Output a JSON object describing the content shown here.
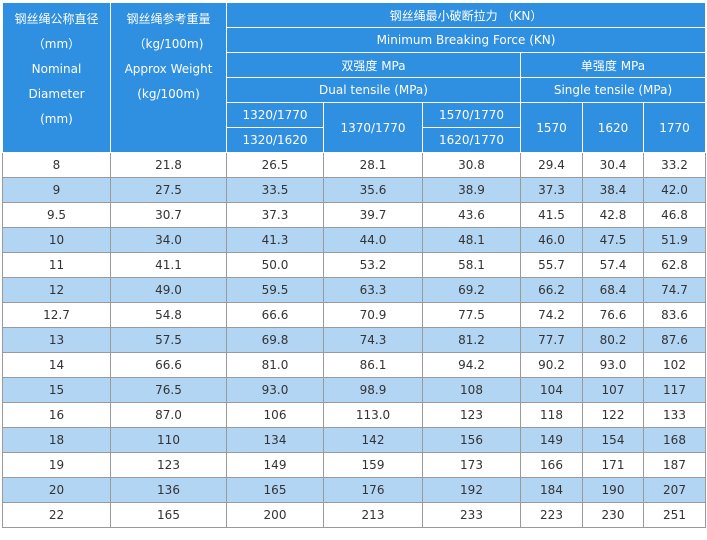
{
  "header": {
    "col_diameter": [
      "钢丝绳公称直径",
      "（mm）",
      "Nominal Diameter",
      "(mm)"
    ],
    "col_weight": [
      "钢丝绳参考重量",
      "（kg/100m)",
      "Approx Weight",
      "(kg/100m)"
    ],
    "force_zh": "钢丝绳最小破断拉力 （KN）",
    "force_en": "Minimum Breaking Force (KN)",
    "dual_zh": "双强度 MPa",
    "dual_en": "Dual tensile (MPa)",
    "single_zh": "单强度 MPa",
    "single_en": "Single tensile (MPa)",
    "dual_cols": [
      [
        "1320/1770",
        "1320/1620"
      ],
      [
        "1370/1770"
      ],
      [
        "1570/1770",
        "1620/1770"
      ]
    ],
    "single_cols": [
      "1570",
      "1620",
      "1770"
    ]
  },
  "rows": [
    [
      "8",
      "21.8",
      "26.5",
      "28.1",
      "30.8",
      "29.4",
      "30.4",
      "33.2"
    ],
    [
      "9",
      "27.5",
      "33.5",
      "35.6",
      "38.9",
      "37.3",
      "38.4",
      "42.0"
    ],
    [
      "9.5",
      "30.7",
      "37.3",
      "39.7",
      "43.6",
      "41.5",
      "42.8",
      "46.8"
    ],
    [
      "10",
      "34.0",
      "41.3",
      "44.0",
      "48.1",
      "46.0",
      "47.5",
      "51.9"
    ],
    [
      "11",
      "41.1",
      "50.0",
      "53.2",
      "58.1",
      "55.7",
      "57.4",
      "62.8"
    ],
    [
      "12",
      "49.0",
      "59.5",
      "63.3",
      "69.2",
      "66.2",
      "68.4",
      "74.7"
    ],
    [
      "12.7",
      "54.8",
      "66.6",
      "70.9",
      "77.5",
      "74.2",
      "76.6",
      "83.6"
    ],
    [
      "13",
      "57.5",
      "69.8",
      "74.3",
      "81.2",
      "77.7",
      "80.2",
      "87.6"
    ],
    [
      "14",
      "66.6",
      "81.0",
      "86.1",
      "94.2",
      "90.2",
      "93.0",
      "102"
    ],
    [
      "15",
      "76.5",
      "93.0",
      "98.9",
      "108",
      "104",
      "107",
      "117"
    ],
    [
      "16",
      "87.0",
      "106",
      "113.0",
      "123",
      "118",
      "122",
      "133"
    ],
    [
      "18",
      "110",
      "134",
      "142",
      "156",
      "149",
      "154",
      "168"
    ],
    [
      "19",
      "123",
      "149",
      "159",
      "173",
      "166",
      "171",
      "187"
    ],
    [
      "20",
      "136",
      "165",
      "176",
      "192",
      "184",
      "190",
      "207"
    ],
    [
      "22",
      "165",
      "200",
      "213",
      "233",
      "223",
      "230",
      "251"
    ]
  ]
}
